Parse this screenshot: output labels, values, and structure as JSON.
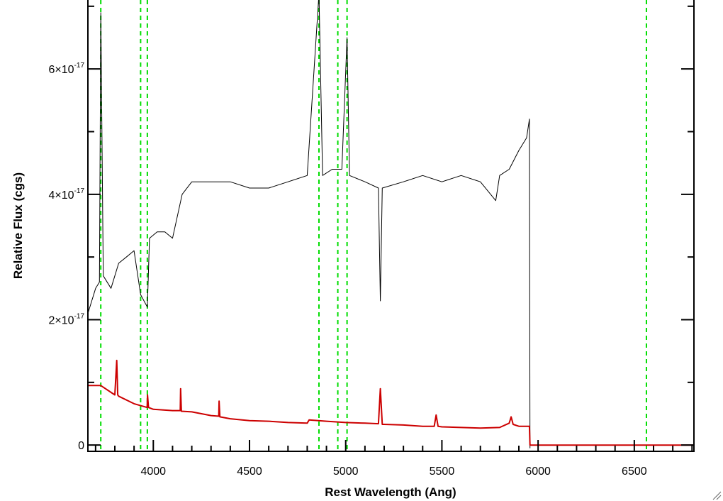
{
  "chart_data": {
    "type": "line",
    "title": "",
    "xlabel": "Rest Wavelength (Ang)",
    "ylabel": "Relative Flux (cgs)",
    "xlim": [
      3660,
      6810
    ],
    "ylim": [
      -0.1,
      7.1
    ],
    "y_scale_exponent": -17,
    "x_ticks": [
      4000,
      4500,
      5000,
      5500,
      6000,
      6500
    ],
    "x_tick_labels": [
      "4000",
      "4500",
      "5000",
      "5500",
      "6000",
      "6500"
    ],
    "y_ticks": [
      0,
      2,
      4,
      6
    ],
    "y_tick_labels": [
      {
        "mantissa": "0",
        "exponent": ""
      },
      {
        "mantissa": "2×10",
        "exponent": "-17"
      },
      {
        "mantissa": "4×10",
        "exponent": "-17"
      },
      {
        "mantissa": "6×10",
        "exponent": "-17"
      }
    ],
    "x_minor_step": 100,
    "y_minor_step": 1,
    "grid": false,
    "legend": "none",
    "colors": {
      "spectrum": "#000000",
      "model": "#cc0000",
      "lines": "#00dd00"
    },
    "vertical_lines": [
      3727,
      3934,
      3969,
      4861,
      4959,
      5007,
      6563
    ],
    "series": [
      {
        "color": "#000000",
        "x": [
          3660,
          3700,
          3720,
          3727,
          3740,
          3780,
          3820,
          3860,
          3900,
          3934,
          3969,
          3980,
          4020,
          4060,
          4100,
          4150,
          4200,
          4300,
          4400,
          4500,
          4600,
          4700,
          4800,
          4861,
          4880,
          4930,
          4980,
          5007,
          5020,
          5100,
          5170,
          5180,
          5190,
          5300,
          5400,
          5500,
          5600,
          5700,
          5780,
          5800,
          5850,
          5900,
          5940,
          5955,
          5958
        ],
        "y": [
          2.1,
          2.5,
          2.6,
          6.9,
          2.7,
          2.5,
          2.9,
          3.0,
          3.1,
          2.4,
          2.2,
          3.3,
          3.4,
          3.4,
          3.3,
          4.0,
          4.2,
          4.2,
          4.2,
          4.1,
          4.1,
          4.2,
          4.3,
          7.2,
          4.3,
          4.4,
          4.4,
          6.5,
          4.3,
          4.2,
          4.1,
          2.3,
          4.1,
          4.2,
          4.3,
          4.2,
          4.3,
          4.2,
          3.9,
          4.3,
          4.4,
          4.7,
          4.9,
          5.2,
          -0.05
        ]
      },
      {
        "color": "#cc0000",
        "x": [
          3660,
          3727,
          3800,
          3810,
          3815,
          3820,
          3900,
          3968,
          3970,
          3975,
          4000,
          4100,
          4140,
          4142,
          4146,
          4200,
          4300,
          4340,
          4342,
          4346,
          4400,
          4500,
          4600,
          4700,
          4800,
          4810,
          4900,
          5000,
          5100,
          5170,
          5180,
          5190,
          5200,
          5300,
          5400,
          5460,
          5470,
          5480,
          5500,
          5600,
          5700,
          5800,
          5850,
          5860,
          5870,
          5900,
          5955,
          5958,
          6810
        ],
        "y": [
          0.95,
          0.95,
          0.8,
          1.35,
          0.8,
          0.78,
          0.66,
          0.6,
          0.8,
          0.6,
          0.57,
          0.55,
          0.55,
          0.9,
          0.54,
          0.53,
          0.47,
          0.46,
          0.7,
          0.45,
          0.42,
          0.39,
          0.38,
          0.36,
          0.35,
          0.4,
          0.38,
          0.36,
          0.35,
          0.34,
          0.9,
          0.33,
          0.33,
          0.32,
          0.3,
          0.3,
          0.48,
          0.3,
          0.29,
          0.28,
          0.27,
          0.28,
          0.35,
          0.45,
          0.33,
          0.3,
          0.3,
          0.0,
          0.0
        ]
      }
    ]
  }
}
